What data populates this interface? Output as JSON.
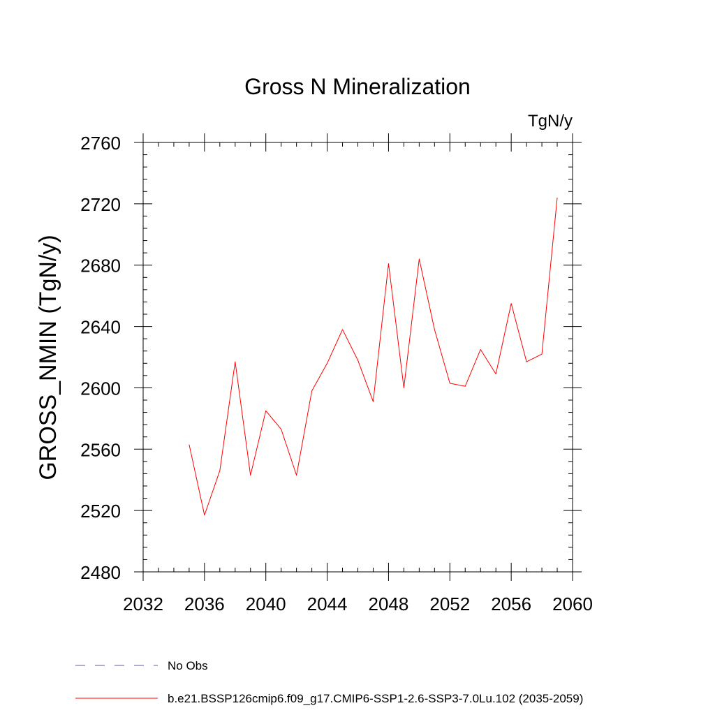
{
  "chart_data": {
    "type": "line",
    "title": "Gross N Mineralization",
    "units_label": "TgN/y",
    "ylabel": "GROSS_NMIN  (TgN/y)",
    "xlabel": "",
    "xlim": [
      2032,
      2060
    ],
    "ylim": [
      2480,
      2760
    ],
    "x_ticks": [
      2032,
      2036,
      2040,
      2044,
      2048,
      2052,
      2056,
      2060
    ],
    "y_ticks": [
      2480,
      2520,
      2560,
      2600,
      2640,
      2680,
      2720,
      2760
    ],
    "x_minor_step": 1,
    "y_minor_step": 8,
    "grid": false,
    "legend_position": "bottom-left, below plot",
    "series": [
      {
        "name": "b.e21.BSSP126cmip6.f09_g17.CMIP6-SSP1-2.6-SSP3-7.0Lu.102 (2035-2059)",
        "color": "#ff0000",
        "style": "solid",
        "x": [
          2035,
          2036,
          2037,
          2038,
          2039,
          2040,
          2041,
          2042,
          2043,
          2044,
          2045,
          2046,
          2047,
          2048,
          2049,
          2050,
          2051,
          2052,
          2053,
          2054,
          2055,
          2056,
          2057,
          2058,
          2059
        ],
        "y": [
          2563,
          2517,
          2546,
          2617,
          2543,
          2585,
          2573,
          2543,
          2598,
          2616,
          2638,
          2618,
          2591,
          2681,
          2600,
          2684,
          2638,
          2603,
          2601,
          2625,
          2609,
          2655,
          2617,
          2622,
          2724
        ]
      }
    ],
    "legend": [
      {
        "label": "No Obs",
        "color": "#5a5aa8",
        "style": "dashed"
      },
      {
        "label": "b.e21.BSSP126cmip6.f09_g17.CMIP6-SSP1-2.6-SSP3-7.0Lu.102 (2035-2059)",
        "color": "#ff0000",
        "style": "solid"
      }
    ]
  }
}
